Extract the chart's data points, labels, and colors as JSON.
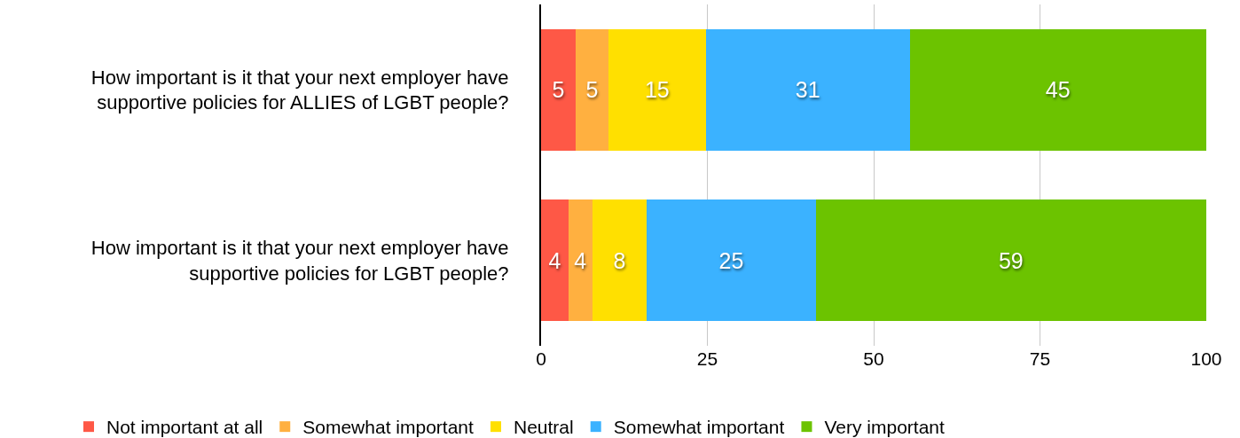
{
  "chart_data": {
    "type": "bar",
    "orientation": "horizontal",
    "stacked": true,
    "categories": [
      "How important is it that your next employer have supportive policies for ALLIES of LGBT people?",
      "How important is it that your next employer have supportive policies for LGBT people?"
    ],
    "series": [
      {
        "name": "Not important at all",
        "color": "#fe5846",
        "values": [
          5.2,
          4.1
        ],
        "value_labels": [
          "5",
          "4"
        ]
      },
      {
        "name": "Somewhat important",
        "color": "#ffb040",
        "values": [
          4.9,
          3.6
        ],
        "value_labels": [
          "5",
          "4"
        ]
      },
      {
        "name": "Neutral",
        "color": "#ffe000",
        "values": [
          14.7,
          8.2
        ],
        "value_labels": [
          "15",
          "8"
        ]
      },
      {
        "name": "Somewhat important",
        "color": "#3bb2ff",
        "values": [
          30.6,
          25.4
        ],
        "value_labels": [
          "31",
          "25"
        ]
      },
      {
        "name": "Very important",
        "color": "#6cc300",
        "values": [
          44.6,
          58.7
        ],
        "value_labels": [
          "45",
          "59"
        ]
      }
    ],
    "xlim": [
      0,
      100
    ],
    "xticks": [
      0,
      25,
      50,
      75,
      100
    ],
    "grid": "x",
    "legend": "bottom"
  }
}
